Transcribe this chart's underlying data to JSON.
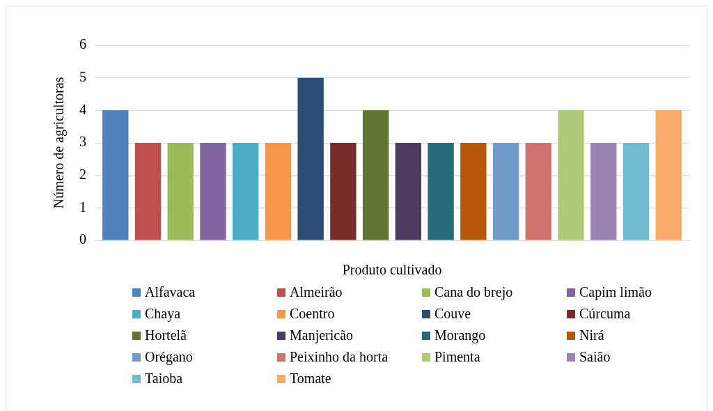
{
  "chart_data": {
    "type": "bar",
    "xlabel": "Produto cultivado",
    "ylabel": "Número de agricultoras",
    "categories": [
      null
    ],
    "ylim": [
      0,
      6
    ],
    "yticks": [
      0,
      1,
      2,
      3,
      4,
      5,
      6
    ],
    "grid": "y",
    "legend": "bottom",
    "series": [
      {
        "name": "Alfavaca",
        "color": "#4f81bd",
        "values": [
          4
        ]
      },
      {
        "name": "Almeirão",
        "color": "#c0504d",
        "values": [
          3
        ]
      },
      {
        "name": "Cana do brejo",
        "color": "#9bbb59",
        "values": [
          3
        ]
      },
      {
        "name": "Capim limão",
        "color": "#8064a2",
        "values": [
          3
        ]
      },
      {
        "name": "Chaya",
        "color": "#4bacc6",
        "values": [
          3
        ]
      },
      {
        "name": "Coentro",
        "color": "#f79646",
        "values": [
          3
        ]
      },
      {
        "name": "Couve",
        "color": "#2c4d75",
        "values": [
          5
        ]
      },
      {
        "name": "Cúrcuma",
        "color": "#772c2a",
        "values": [
          3
        ]
      },
      {
        "name": "Hortelã",
        "color": "#5f7530",
        "values": [
          4
        ]
      },
      {
        "name": "Manjericão",
        "color": "#4d3b62",
        "values": [
          3
        ]
      },
      {
        "name": "Morango",
        "color": "#276a7c",
        "values": [
          3
        ]
      },
      {
        "name": "Nirá",
        "color": "#b65708",
        "values": [
          3
        ]
      },
      {
        "name": "Orégano",
        "color": "#729aca",
        "values": [
          3
        ]
      },
      {
        "name": "Peixinho da horta",
        "color": "#d07370",
        "values": [
          3
        ]
      },
      {
        "name": "Pimenta",
        "color": "#afc97a",
        "values": [
          4
        ]
      },
      {
        "name": "Saião",
        "color": "#9983b5",
        "values": [
          3
        ]
      },
      {
        "name": "Taioba",
        "color": "#6fbdd1",
        "values": [
          3
        ]
      },
      {
        "name": "Tomate",
        "color": "#f9ab6b",
        "values": [
          4
        ]
      }
    ]
  }
}
